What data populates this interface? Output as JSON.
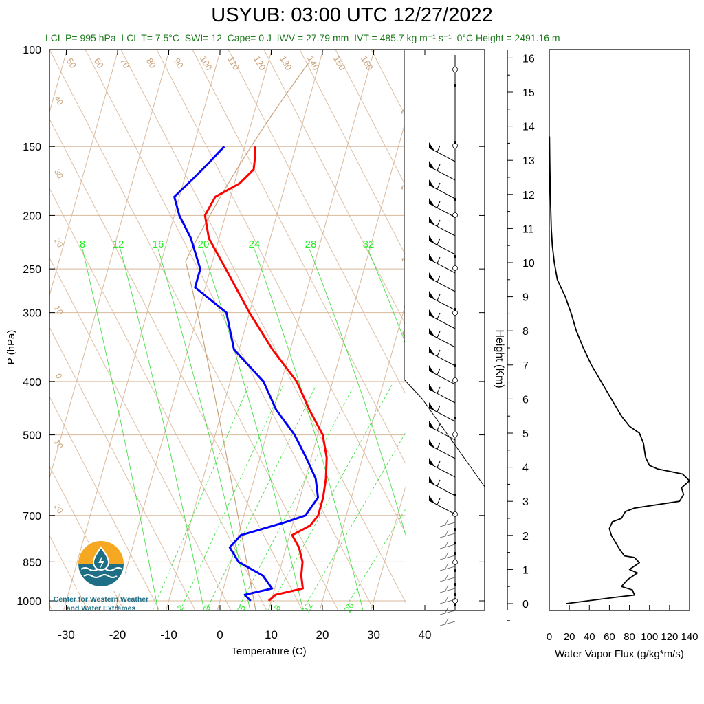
{
  "title": "USYUB: 03:00 UTC 12/27/2022",
  "subtitle": {
    "lcl_p": "LCL P= 995 hPa",
    "lcl_t": "LCL T= 7.5°C",
    "swi": "SWI= 12",
    "cape": "Cape= 0 J",
    "iwv": "IWV = 27.79 mm",
    "ivt": "IVT = 485.7 kg m⁻¹ s⁻¹",
    "zero_c_height": "0°C Height = 2491.16 m"
  },
  "logo": {
    "line1": "Center for Western Weather",
    "line2": "and Water Extremes"
  },
  "colors": {
    "temperature": "#ff0000",
    "dewpoint": "#0000ff",
    "isotherm": "#d9b99b",
    "mixing_ratio": "#33dd33",
    "green_label": "#22ee22",
    "brown_label": "#c9a27a",
    "subtitle": "#1a7a1a",
    "logo_orange": "#f7a823",
    "logo_teal": "#1e6f86"
  },
  "chart_data": [
    {
      "type": "line",
      "name": "skew-t",
      "xlabel": "Temperature (C)",
      "ylabel": "P (hPa)",
      "xlim": [
        -35,
        45
      ],
      "ylim": [
        1000,
        100
      ],
      "log_y": true,
      "skew": "isotherms slanted",
      "x_ticks": [
        -30,
        -20,
        -10,
        0,
        10,
        20,
        30,
        40
      ],
      "y_ticks": [
        100,
        150,
        200,
        250,
        300,
        400,
        500,
        700,
        850,
        1000
      ],
      "mixing_ratio_labels_top": [
        "8",
        "12",
        "16",
        "20",
        "24",
        "28",
        "32"
      ],
      "mixing_ratio_labels_bottom": [
        "2",
        "3",
        "5",
        "8",
        "12",
        "20"
      ],
      "dry_adiabat_labels": [
        "50",
        "60",
        "70",
        "80",
        "90",
        "100",
        "110",
        "120",
        "130",
        "140",
        "150",
        "160"
      ],
      "isotherm_labels": [
        "40",
        "30",
        "20",
        "10",
        "0",
        "10",
        "20"
      ],
      "moist_labels": [
        "30",
        "20",
        "10",
        "0",
        "10",
        "20",
        "30"
      ],
      "series": [
        {
          "name": "Temperature",
          "points": [
            [
              9.5,
              1000
            ],
            [
              10.5,
              975
            ],
            [
              15.5,
              950
            ],
            [
              14.5,
              900
            ],
            [
              14.0,
              850
            ],
            [
              12.5,
              800
            ],
            [
              10.5,
              760
            ],
            [
              13.5,
              730
            ],
            [
              14.5,
              700
            ],
            [
              14.5,
              650
            ],
            [
              14.0,
              600
            ],
            [
              13.0,
              550
            ],
            [
              11.0,
              500
            ],
            [
              7.0,
              450
            ],
            [
              3.0,
              400
            ],
            [
              -3.5,
              350
            ],
            [
              -10.0,
              300
            ],
            [
              -17.0,
              250
            ],
            [
              -22.0,
              220
            ],
            [
              -24.0,
              200
            ],
            [
              -23.0,
              185
            ],
            [
              -19.0,
              175
            ],
            [
              -17.0,
              165
            ],
            [
              -17.5,
              155
            ],
            [
              -18.0,
              150
            ]
          ]
        },
        {
          "name": "Dewpoint",
          "points": [
            [
              6.0,
              1000
            ],
            [
              4.5,
              975
            ],
            [
              9.5,
              950
            ],
            [
              7.0,
              900
            ],
            [
              1.5,
              850
            ],
            [
              -1.0,
              800
            ],
            [
              0.5,
              760
            ],
            [
              8.5,
              720
            ],
            [
              12.0,
              700
            ],
            [
              13.5,
              650
            ],
            [
              12.0,
              600
            ],
            [
              9.0,
              550
            ],
            [
              5.5,
              500
            ],
            [
              0.5,
              450
            ],
            [
              -3.5,
              400
            ],
            [
              -11.0,
              350
            ],
            [
              -14.5,
              300
            ],
            [
              -22.0,
              270
            ],
            [
              -22.0,
              250
            ],
            [
              -25.5,
              220
            ],
            [
              -29.0,
              200
            ],
            [
              -31.0,
              185
            ],
            [
              -28.0,
              170
            ],
            [
              -26.0,
              160
            ],
            [
              -24.0,
              150
            ]
          ]
        }
      ]
    },
    {
      "type": "line",
      "name": "water-vapor-flux",
      "xlabel": "Water Vapor Flux (g/kg*m/s)",
      "ylabel": "Height (Km)",
      "xlim": [
        0,
        140
      ],
      "ylim": [
        -0.3,
        16.5
      ],
      "x_ticks": [
        0,
        20,
        40,
        60,
        80,
        100,
        120,
        140
      ],
      "y_ticks": [
        0,
        1,
        2,
        3,
        4,
        5,
        6,
        7,
        8,
        9,
        10,
        11,
        12,
        13,
        14,
        15,
        16
      ],
      "series": [
        {
          "name": "Water Vapor Flux",
          "points": [
            [
              17,
              0.0
            ],
            [
              70,
              0.2
            ],
            [
              85,
              0.25
            ],
            [
              83,
              0.4
            ],
            [
              72,
              0.5
            ],
            [
              78,
              0.7
            ],
            [
              88,
              0.9
            ],
            [
              80,
              1.0
            ],
            [
              90,
              1.2
            ],
            [
              85,
              1.35
            ],
            [
              75,
              1.4
            ],
            [
              70,
              1.6
            ],
            [
              66,
              1.8
            ],
            [
              62,
              2.0
            ],
            [
              60,
              2.2
            ],
            [
              63,
              2.4
            ],
            [
              72,
              2.5
            ],
            [
              76,
              2.7
            ],
            [
              85,
              2.8
            ],
            [
              130,
              3.0
            ],
            [
              134,
              3.2
            ],
            [
              132,
              3.4
            ],
            [
              140,
              3.6
            ],
            [
              133,
              3.8
            ],
            [
              108,
              3.95
            ],
            [
              100,
              4.05
            ],
            [
              96,
              4.3
            ],
            [
              94,
              4.7
            ],
            [
              90,
              5.0
            ],
            [
              80,
              5.2
            ],
            [
              72,
              5.5
            ],
            [
              62,
              6.0
            ],
            [
              52,
              6.5
            ],
            [
              42,
              7.0
            ],
            [
              34,
              7.5
            ],
            [
              27,
              8.0
            ],
            [
              22,
              8.5
            ],
            [
              16,
              9.0
            ],
            [
              8,
              9.5
            ],
            [
              5,
              10.0
            ],
            [
              3,
              10.5
            ],
            [
              2,
              11.0
            ],
            [
              1,
              12.0
            ],
            [
              0.5,
              13.0
            ],
            [
              0.2,
              13.7
            ]
          ]
        }
      ]
    }
  ]
}
